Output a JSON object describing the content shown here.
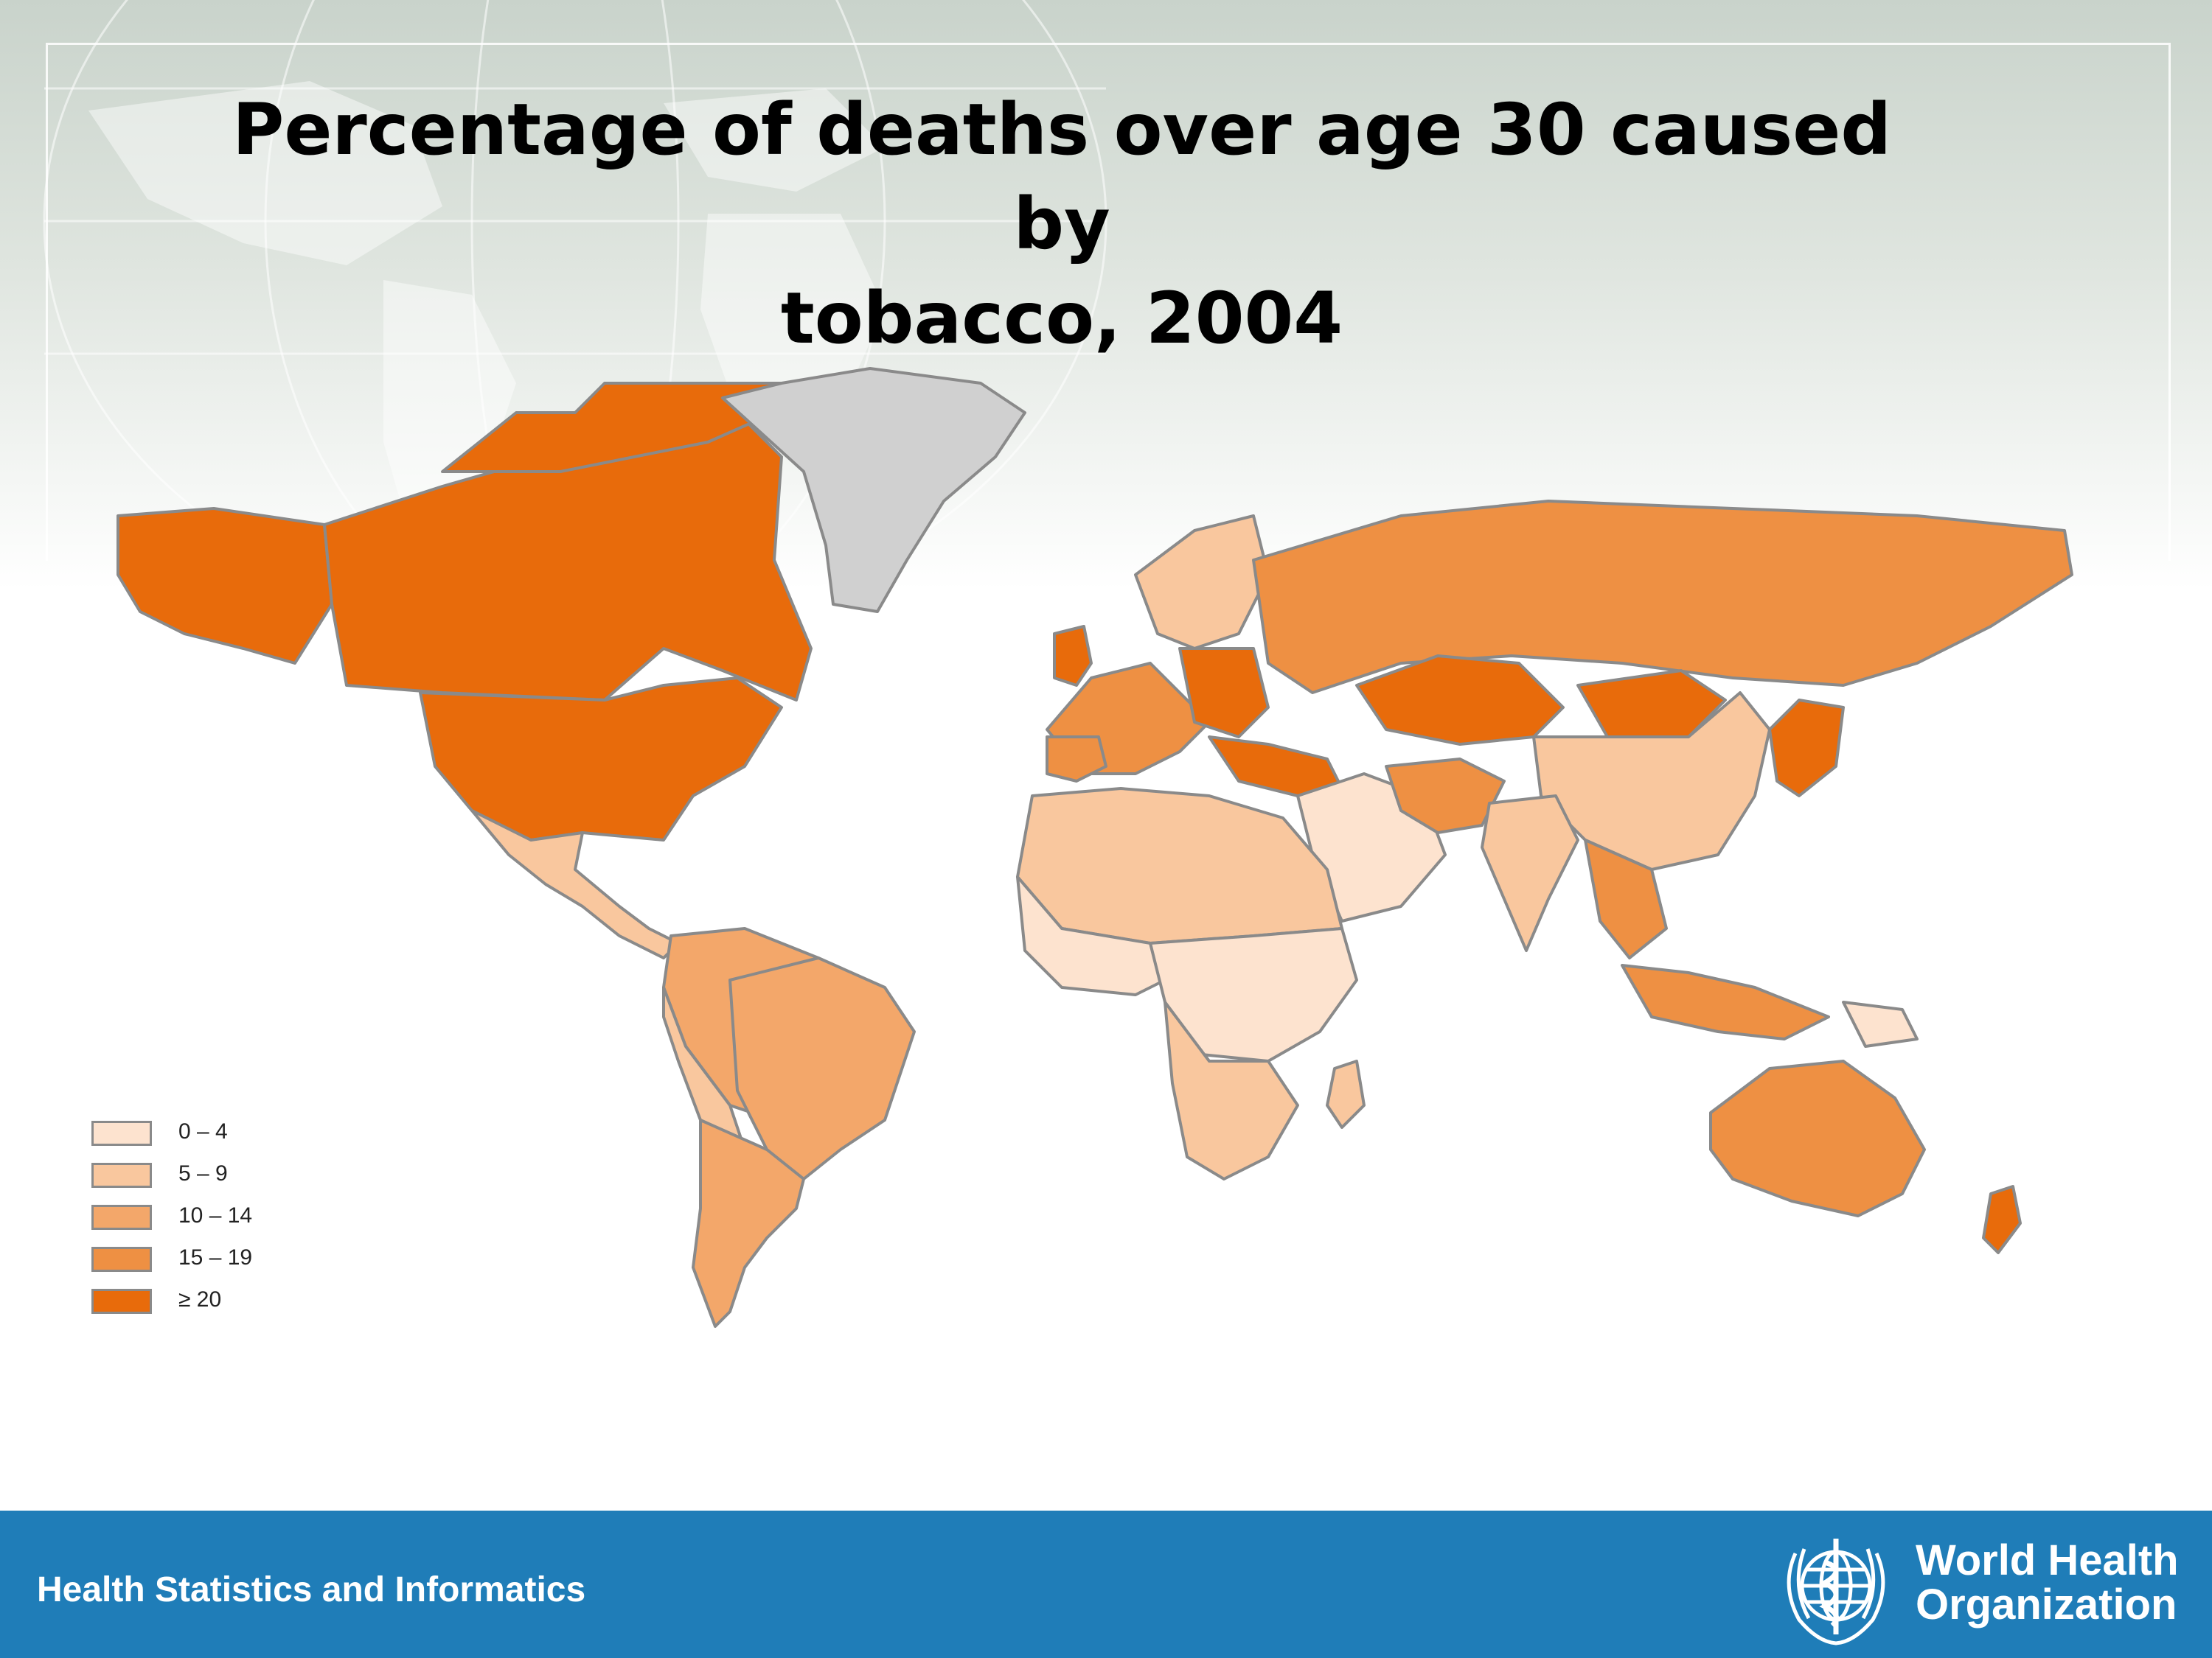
{
  "slide": {
    "title": "Percentage of deaths over age 30 caused by\ntobacco, 2004",
    "footer_text": "Health Statistics and Informatics",
    "organization_name": "World Health\nOrganization"
  },
  "legend": {
    "items": [
      {
        "label": "0 – 4",
        "color": "#fde3cf"
      },
      {
        "label": "5 – 9",
        "color": "#f9c79e"
      },
      {
        "label": "10 – 14",
        "color": "#f3a76a"
      },
      {
        "label": "15 – 19",
        "color": "#ee9043"
      },
      {
        "label": "≥ 20",
        "color": "#e86b0b"
      }
    ],
    "no_data_color": "#d0d0d0"
  },
  "colors": {
    "footer_bar": "#1f7db8",
    "border": "#8a8a8a"
  }
}
